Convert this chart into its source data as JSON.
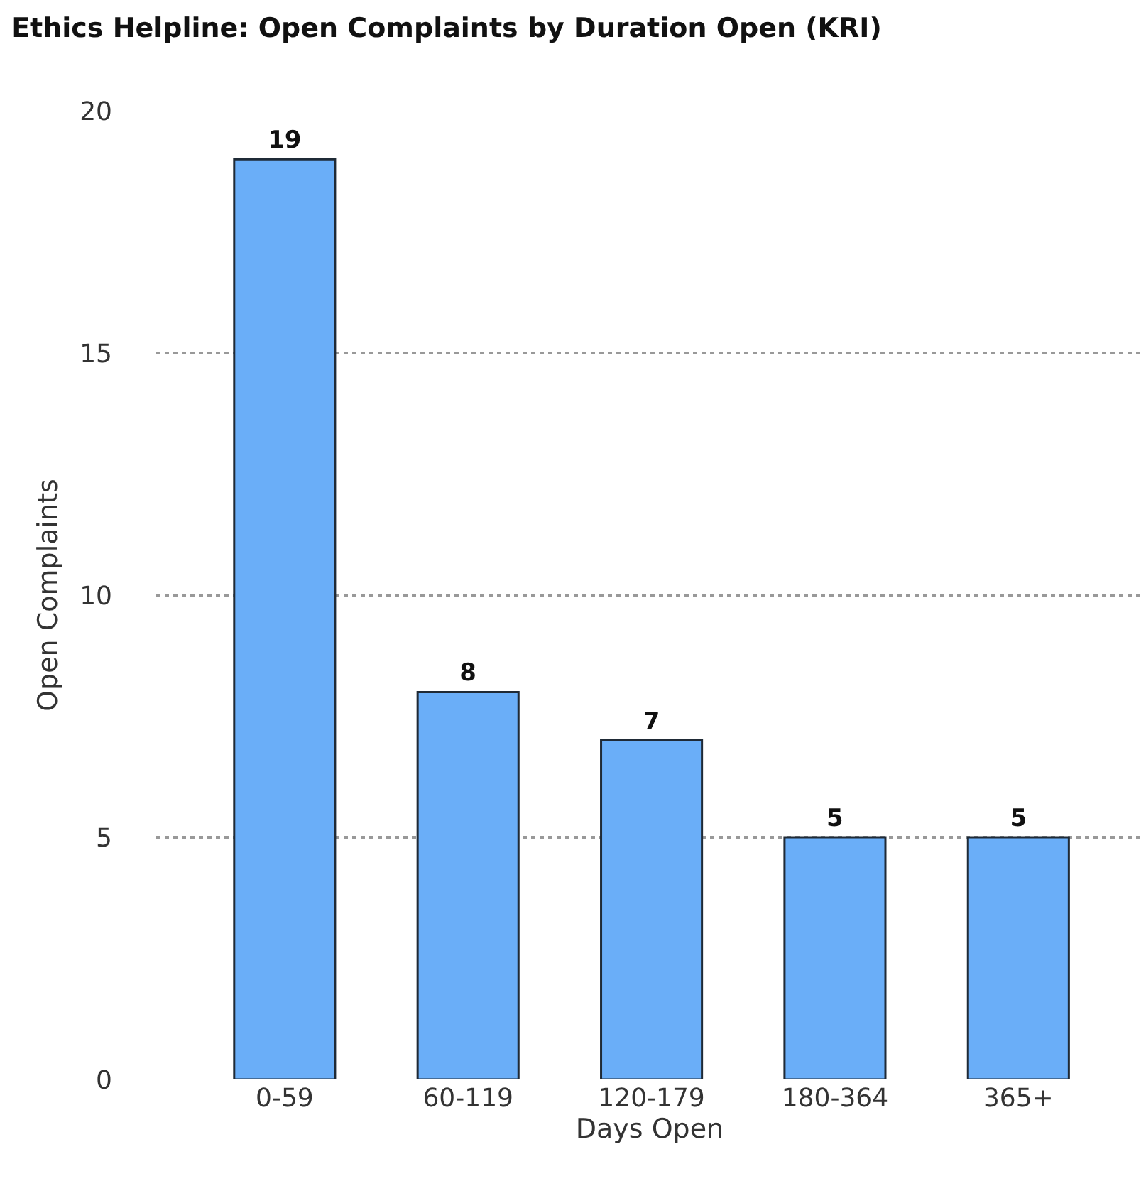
{
  "chart_data": {
    "type": "bar",
    "title": "Ethics Helpline: Open Complaints by Duration Open (KRI)",
    "xlabel": "Days Open",
    "ylabel": "Open Complaints",
    "categories": [
      "0-59",
      "60-119",
      "120-179",
      "180-364",
      "365+"
    ],
    "values": [
      19,
      8,
      7,
      5,
      5
    ],
    "color": "#6aaef8",
    "ylim": [
      0,
      20
    ],
    "yticks": [
      0,
      5,
      10,
      15,
      20
    ],
    "grid": "y",
    "data_labels": true
  }
}
